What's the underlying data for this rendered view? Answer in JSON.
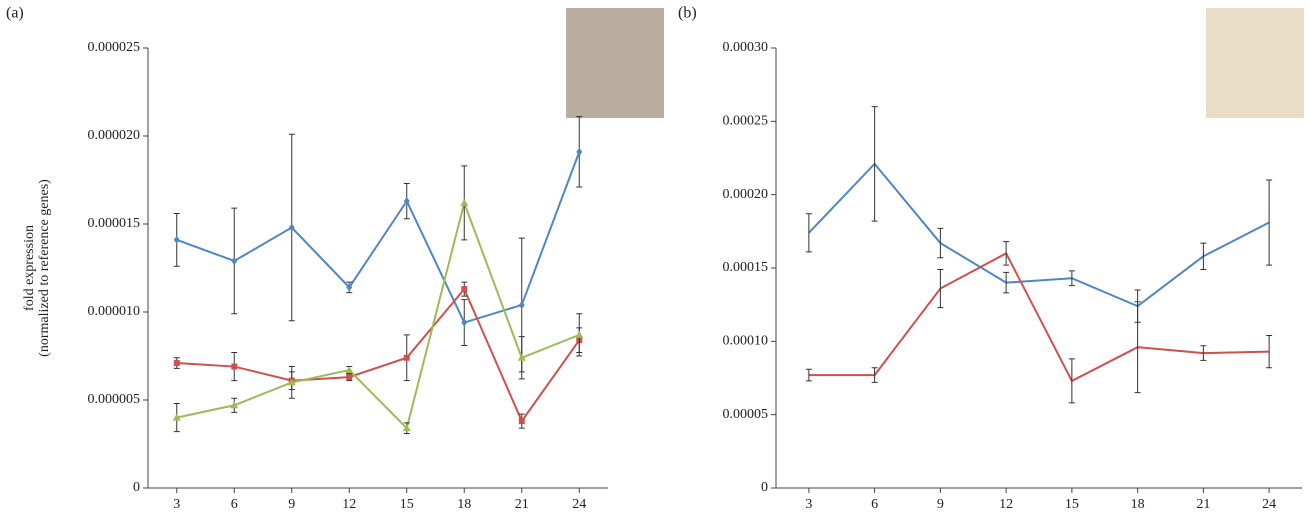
{
  "chart_data": [
    {
      "type": "line",
      "panel": "(a)",
      "ylabel": [
        "fold expression",
        "(normalized to reference genes)"
      ],
      "x": [
        3,
        6,
        9,
        12,
        15,
        18,
        21,
        24
      ],
      "xlim": [
        1.5,
        25.5
      ],
      "xticks": [
        3,
        6,
        9,
        12,
        15,
        18,
        21,
        24
      ],
      "ylim": [
        0,
        2.5e-05
      ],
      "yticks": [
        0,
        {
          "value": 5e-06,
          "label": "0.000005"
        },
        {
          "value": 1e-05,
          "label": "0.000010"
        },
        {
          "value": 1.5e-05,
          "label": "0.000015"
        },
        {
          "value": 2e-05,
          "label": "0.000020"
        },
        {
          "value": 2.5e-05,
          "label": "0.000025"
        }
      ],
      "series": [
        {
          "color": "#4f86c6",
          "marker": "diamond",
          "values": [
            1.41e-05,
            1.29e-05,
            1.48e-05,
            1.14e-05,
            1.63e-05,
            9.4e-06,
            1.04e-05,
            1.91e-05
          ],
          "errors": [
            1.5e-06,
            3e-06,
            5.3e-06,
            3e-07,
            1e-06,
            1.3e-06,
            3.8e-06,
            2e-06
          ]
        },
        {
          "color": "#d0504d",
          "marker": "square",
          "values": [
            7.1e-06,
            6.9e-06,
            6.1e-06,
            6.3e-06,
            7.4e-06,
            1.13e-05,
            3.8e-06,
            8.4e-06
          ],
          "errors": [
            3e-07,
            8e-07,
            5e-07,
            2e-07,
            1.3e-06,
            4e-07,
            4e-07,
            7e-07
          ]
        },
        {
          "color": "#9bbb59",
          "marker": "triangle",
          "values": [
            4e-06,
            4.7e-06,
            6e-06,
            6.7e-06,
            3.4e-06,
            1.62e-05,
            7.4e-06,
            8.7e-06
          ],
          "errors": [
            8e-07,
            4e-07,
            9e-07,
            2e-07,
            3e-07,
            2.1e-06,
            1.2e-06,
            1.2e-06
          ]
        }
      ]
    },
    {
      "type": "line",
      "panel": "(b)",
      "x": [
        3,
        6,
        9,
        12,
        15,
        18,
        21,
        24
      ],
      "xlim": [
        1.5,
        25.5
      ],
      "xticks": [
        3,
        6,
        9,
        12,
        15,
        18,
        21,
        24
      ],
      "ylim": [
        0,
        0.0003
      ],
      "yticks": [
        0,
        {
          "value": 5e-05,
          "label": "0.00005"
        },
        {
          "value": 0.0001,
          "label": "0.00010"
        },
        {
          "value": 0.00015,
          "label": "0.00015"
        },
        {
          "value": 0.0002,
          "label": "0.00020"
        },
        {
          "value": 0.00025,
          "label": "0.00025"
        },
        {
          "value": 0.0003,
          "label": "0.00030"
        }
      ],
      "series": [
        {
          "color": "#4f86c6",
          "marker": "none",
          "values": [
            0.000174,
            0.000221,
            0.000167,
            0.00014,
            0.000143,
            0.000124,
            0.000158,
            0.000181
          ],
          "errors": [
            1.3e-05,
            3.9e-05,
            1e-05,
            7e-06,
            5e-06,
            1.1e-05,
            9e-06,
            2.9e-05
          ]
        },
        {
          "color": "#d0504d",
          "marker": "none",
          "values": [
            7.7e-05,
            7.7e-05,
            0.000136,
            0.00016,
            7.3e-05,
            9.6e-05,
            9.2e-05,
            9.3e-05
          ],
          "errors": [
            4e-06,
            5e-06,
            1.3e-05,
            8e-06,
            1.5e-05,
            3.1e-05,
            5e-06,
            1.1e-05
          ]
        }
      ]
    }
  ]
}
